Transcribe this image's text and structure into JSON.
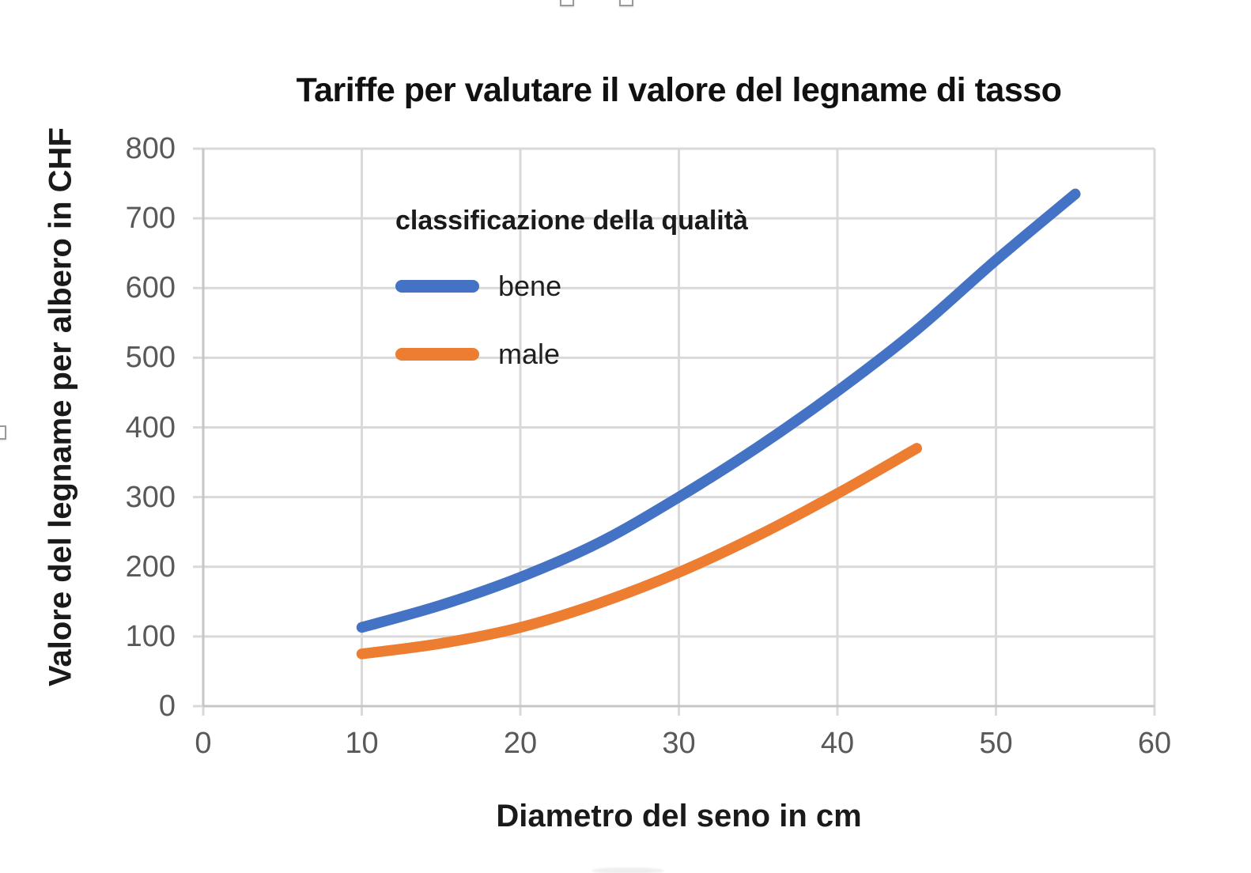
{
  "chart_data": {
    "type": "line",
    "title": "Tariffe per valutare il valore del legname di tasso",
    "xlabel": "Diametro del seno in cm",
    "ylabel": "Valore del legname per albero in CHF",
    "xlim": [
      0,
      60
    ],
    "ylim": [
      0,
      800
    ],
    "x_ticks": [
      0,
      10,
      20,
      30,
      40,
      50,
      60
    ],
    "y_ticks": [
      0,
      100,
      200,
      300,
      400,
      500,
      600,
      700,
      800
    ],
    "grid": true,
    "legend": {
      "title": "classificazione della qualità",
      "position": "inside-upper-left"
    },
    "series": [
      {
        "name": "bene",
        "color": "#4472C4",
        "x": [
          10,
          15,
          20,
          25,
          30,
          35,
          40,
          45,
          50,
          55
        ],
        "y": [
          113,
          145,
          185,
          235,
          300,
          372,
          452,
          540,
          640,
          735
        ]
      },
      {
        "name": "male",
        "color": "#ED7D31",
        "x": [
          10,
          15,
          20,
          25,
          30,
          35,
          40,
          45
        ],
        "y": [
          75,
          90,
          113,
          148,
          192,
          245,
          305,
          370
        ]
      }
    ],
    "colors": {
      "gridline": "#D9D9D9",
      "axis_line": "#C6C6C6",
      "tick_label": "#595959",
      "title": "#111111",
      "axis_title": "#1a1a1a"
    }
  }
}
